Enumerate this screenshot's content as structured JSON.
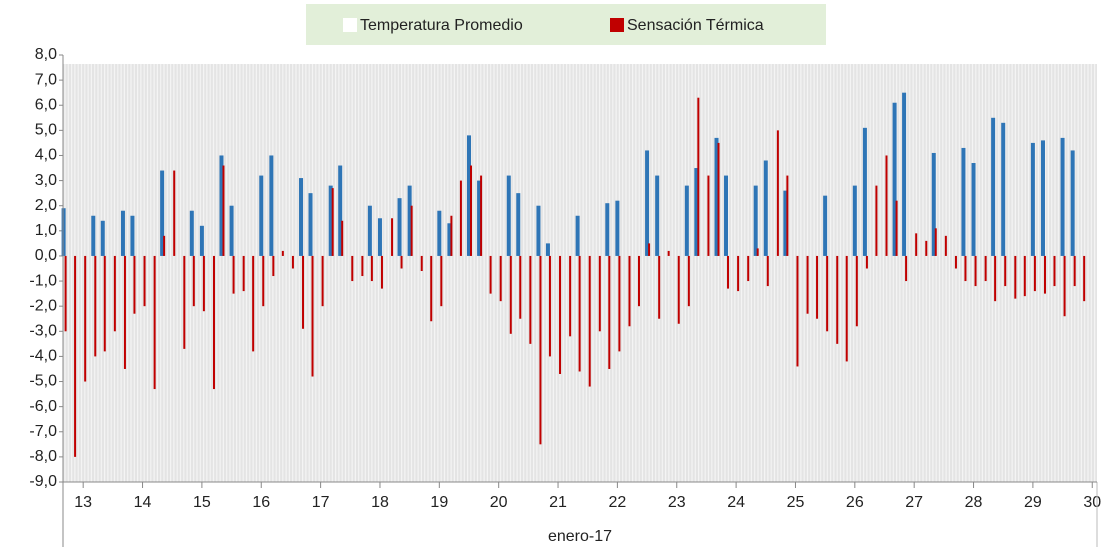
{
  "chart_data": {
    "type": "bar",
    "x_label": "enero-17",
    "xlim": [
      12.66,
      30.08
    ],
    "xticks": [
      13,
      14,
      15,
      16,
      17,
      18,
      19,
      20,
      21,
      22,
      23,
      24,
      25,
      26,
      27,
      28,
      29,
      30
    ],
    "ylim": [
      -9,
      8
    ],
    "yticks": [
      {
        "value": -9,
        "label": "-9,0"
      },
      {
        "value": -8,
        "label": "-8,0"
      },
      {
        "value": -7,
        "label": "-7,0"
      },
      {
        "value": -6,
        "label": "-6,0"
      },
      {
        "value": -5,
        "label": "-5,0"
      },
      {
        "value": -4,
        "label": "-4,0"
      },
      {
        "value": -3,
        "label": "-3,0"
      },
      {
        "value": -2,
        "label": "-2,0"
      },
      {
        "value": -1,
        "label": "-1,0"
      },
      {
        "value": 0,
        "label": "0,0"
      },
      {
        "value": 1,
        "label": "1,0"
      },
      {
        "value": 2,
        "label": "2,0"
      },
      {
        "value": 3,
        "label": "3,0"
      },
      {
        "value": 4,
        "label": "4,0"
      },
      {
        "value": 5,
        "label": "5,0"
      },
      {
        "value": 6,
        "label": "6,0"
      },
      {
        "value": 7,
        "label": "7,0"
      },
      {
        "value": 8,
        "label": "8,0"
      }
    ],
    "x": [
      12.67,
      12.83,
      13,
      13.17,
      13.33,
      13.5,
      13.67,
      13.83,
      14,
      14.17,
      14.33,
      14.5,
      14.67,
      14.83,
      15,
      15.17,
      15.33,
      15.5,
      15.67,
      15.83,
      16,
      16.17,
      16.33,
      16.5,
      16.67,
      16.83,
      17,
      17.17,
      17.33,
      17.5,
      17.67,
      17.83,
      18,
      18.17,
      18.33,
      18.5,
      18.67,
      18.83,
      19,
      19.17,
      19.33,
      19.5,
      19.67,
      19.83,
      20,
      20.17,
      20.33,
      20.5,
      20.67,
      20.83,
      21,
      21.17,
      21.33,
      21.5,
      21.67,
      21.83,
      22,
      22.17,
      22.33,
      22.5,
      22.67,
      22.83,
      23,
      23.17,
      23.33,
      23.5,
      23.67,
      23.83,
      24,
      24.17,
      24.33,
      24.5,
      24.67,
      24.83,
      25,
      25.17,
      25.33,
      25.5,
      25.67,
      25.83,
      26,
      26.17,
      26.33,
      26.5,
      26.67,
      26.83,
      27,
      27.17,
      27.33,
      27.5,
      27.67,
      27.83,
      28,
      28.17,
      28.33,
      28.5,
      28.67,
      28.83,
      29,
      29.17,
      29.33,
      29.5,
      29.67,
      29.83
    ],
    "series": [
      {
        "name": "Temperatura Promedio",
        "color": "#2e75b6",
        "values": [
          1.9,
          0,
          0,
          1.6,
          1.4,
          0,
          1.8,
          1.6,
          0,
          0,
          3.4,
          0,
          0,
          1.8,
          1.2,
          0,
          4.0,
          2.0,
          0,
          0,
          3.2,
          4.0,
          0,
          0,
          3.1,
          2.5,
          0,
          2.8,
          3.6,
          0,
          0,
          2.0,
          1.5,
          0,
          2.3,
          2.8,
          0,
          0,
          1.8,
          1.3,
          0,
          4.8,
          3.0,
          0,
          0,
          3.2,
          2.5,
          0,
          2.0,
          0.5,
          0,
          0,
          1.6,
          0,
          0,
          2.1,
          2.2,
          0,
          0,
          4.2,
          3.2,
          0,
          0,
          2.8,
          3.5,
          0,
          4.7,
          3.2,
          0,
          0,
          2.8,
          3.8,
          0,
          2.6,
          0,
          0,
          0,
          2.4,
          0,
          0,
          2.8,
          5.1,
          0,
          0,
          6.1,
          6.5,
          0,
          0,
          4.1,
          0,
          0,
          4.3,
          3.7,
          0,
          5.5,
          5.3,
          0,
          0,
          4.5,
          4.6,
          0,
          4.7,
          4.2,
          0
        ]
      },
      {
        "name": "Sensación Térmica",
        "color": "#c00000",
        "values": [
          -3.0,
          -8.0,
          -5.0,
          -4.0,
          -3.8,
          -3.0,
          -4.5,
          -2.3,
          -2.0,
          -5.3,
          0.8,
          3.4,
          -3.7,
          -2.0,
          -2.2,
          -5.3,
          3.6,
          -1.5,
          -1.4,
          -3.8,
          -2.0,
          -0.8,
          0.2,
          -0.5,
          -2.9,
          -4.8,
          -2.0,
          2.7,
          1.4,
          -1.0,
          -0.8,
          -1.0,
          -1.3,
          1.5,
          -0.5,
          2.0,
          -0.6,
          -2.6,
          -2.0,
          1.6,
          3.0,
          3.6,
          3.2,
          -1.5,
          -1.8,
          -3.1,
          -2.5,
          -3.5,
          -7.5,
          -4.0,
          -4.7,
          -3.2,
          -4.6,
          -5.2,
          -3.0,
          -4.5,
          -3.8,
          -2.8,
          -2.0,
          0.5,
          -2.5,
          0.2,
          -2.7,
          -2.0,
          6.3,
          3.2,
          4.5,
          -1.3,
          -1.4,
          -1.0,
          0.3,
          -1.2,
          5.0,
          3.2,
          -4.4,
          -2.3,
          -2.5,
          -3.0,
          -3.5,
          -4.2,
          -2.8,
          -0.5,
          2.8,
          4.0,
          2.2,
          -1.0,
          0.9,
          0.6,
          1.1,
          0.8,
          -0.5,
          -1.0,
          -1.2,
          -1.0,
          -1.8,
          -1.2,
          -1.7,
          -1.6,
          -1.4,
          -1.5,
          -1.2,
          -2.4,
          -1.2,
          -1.8
        ]
      }
    ]
  }
}
